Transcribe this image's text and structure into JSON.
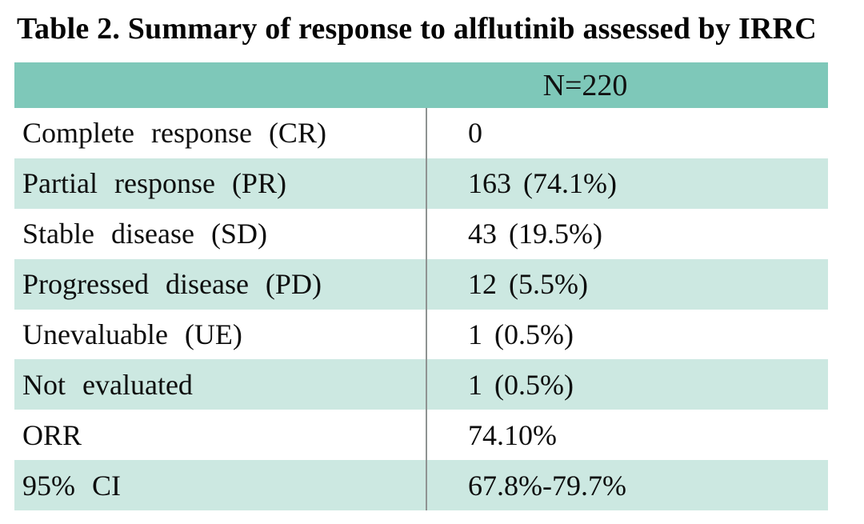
{
  "title": "Table 2. Summary of response to alflutinib assessed by IRRC",
  "table": {
    "header": {
      "col2": "N=220"
    },
    "rows": [
      {
        "label": "Complete response (CR)",
        "value": "0"
      },
      {
        "label": "Partial response (PR)",
        "value": "163 (74.1%)"
      },
      {
        "label": "Stable disease (SD)",
        "value": "43 (19.5%)"
      },
      {
        "label": "Progressed disease (PD)",
        "value": "12 (5.5%)"
      },
      {
        "label": "Unevaluable (UE)",
        "value": "1 (0.5%)"
      },
      {
        "label": "Not evaluated",
        "value": "1 (0.5%)"
      },
      {
        "label": "ORR",
        "value": "74.10%"
      },
      {
        "label": "95% CI",
        "value": "67.8%-79.7%"
      }
    ],
    "colors": {
      "header_bg": "#7ec8b9",
      "stripe_bg": "#cce8e1",
      "divider": "#8f9392"
    }
  }
}
